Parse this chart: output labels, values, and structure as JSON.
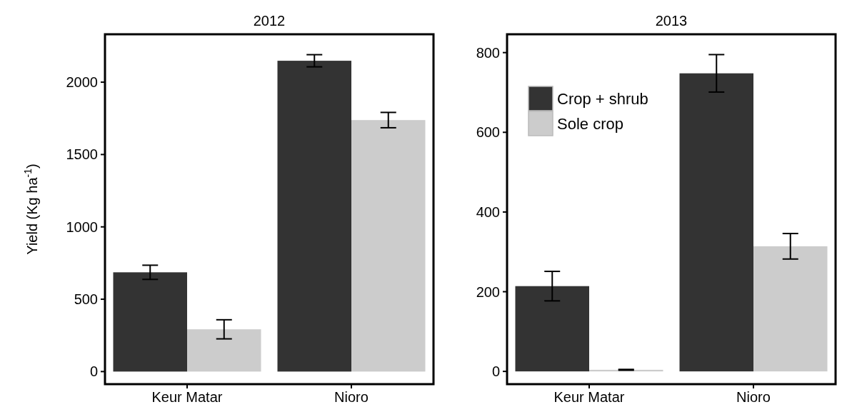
{
  "chart_data": [
    {
      "type": "bar",
      "title": "2012",
      "ylabel": "Yield (Kg ha$^{-1}$)",
      "categories": [
        "Keur Matar",
        "Nioro"
      ],
      "ylim": [
        -87,
        2331
      ],
      "yticks": [
        0,
        500,
        1000,
        1500,
        2000
      ],
      "legend": false,
      "series": [
        {
          "color": "#333333",
          "values": [
            686,
            2148
          ],
          "errors": [
            49,
            42
          ]
        },
        {
          "color": "#cccccc",
          "values": [
            292,
            1738
          ],
          "errors": [
            66,
            53
          ]
        }
      ]
    },
    {
      "type": "bar",
      "title": "2013",
      "categories": [
        "Keur Matar",
        "Nioro"
      ],
      "ylim": [
        -32,
        846
      ],
      "yticks": [
        0,
        200,
        400,
        600,
        800
      ],
      "legend": "top left",
      "series": [
        {
          "name": "Crop + shrub",
          "color": "#333333",
          "values": [
            214,
            748
          ],
          "errors": [
            37,
            47
          ]
        },
        {
          "name": "Sole crop",
          "color": "#cccccc",
          "values": [
            4,
            314
          ],
          "errors": [
            1,
            32
          ]
        }
      ]
    }
  ]
}
